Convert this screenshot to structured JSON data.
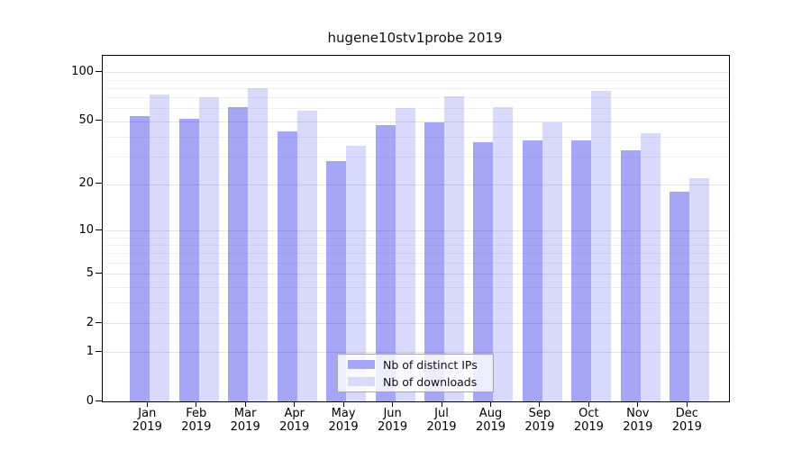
{
  "title": "hugene10stv1probe 2019",
  "chart_data": {
    "type": "bar",
    "title": "hugene10stv1probe 2019",
    "categories": [
      "Jan 2019",
      "Feb 2019",
      "Mar 2019",
      "Apr 2019",
      "May 2019",
      "Jun 2019",
      "Jul 2019",
      "Aug 2019",
      "Sep 2019",
      "Oct 2019",
      "Nov 2019",
      "Dec 2019"
    ],
    "series": [
      {
        "name": "Nb of distinct IPs",
        "color": "#a6a6f7",
        "values": [
          54,
          52,
          61,
          43,
          28,
          47,
          49,
          37,
          38,
          38,
          33,
          18
        ]
      },
      {
        "name": "Nb of downloads",
        "color": "#d9d9fb",
        "values": [
          73,
          70,
          80,
          58,
          35,
          60,
          71,
          61,
          49,
          77,
          42,
          22
        ]
      }
    ],
    "xlabel": "",
    "ylabel": "",
    "y_scale": "log10(value+1)",
    "y_ticks_labeled": [
      0,
      1,
      2,
      5,
      10,
      20,
      50,
      100
    ],
    "y_ticks_minor": [
      3,
      4,
      6,
      7,
      8,
      9,
      30,
      40,
      60,
      70,
      80,
      90
    ],
    "ylim": [
      0,
      126
    ],
    "grid": "horizontal major and minor gridlines drawn over bars",
    "legend_position": "lower center",
    "background_color": "#ffffff",
    "axis_color": "#000000"
  }
}
